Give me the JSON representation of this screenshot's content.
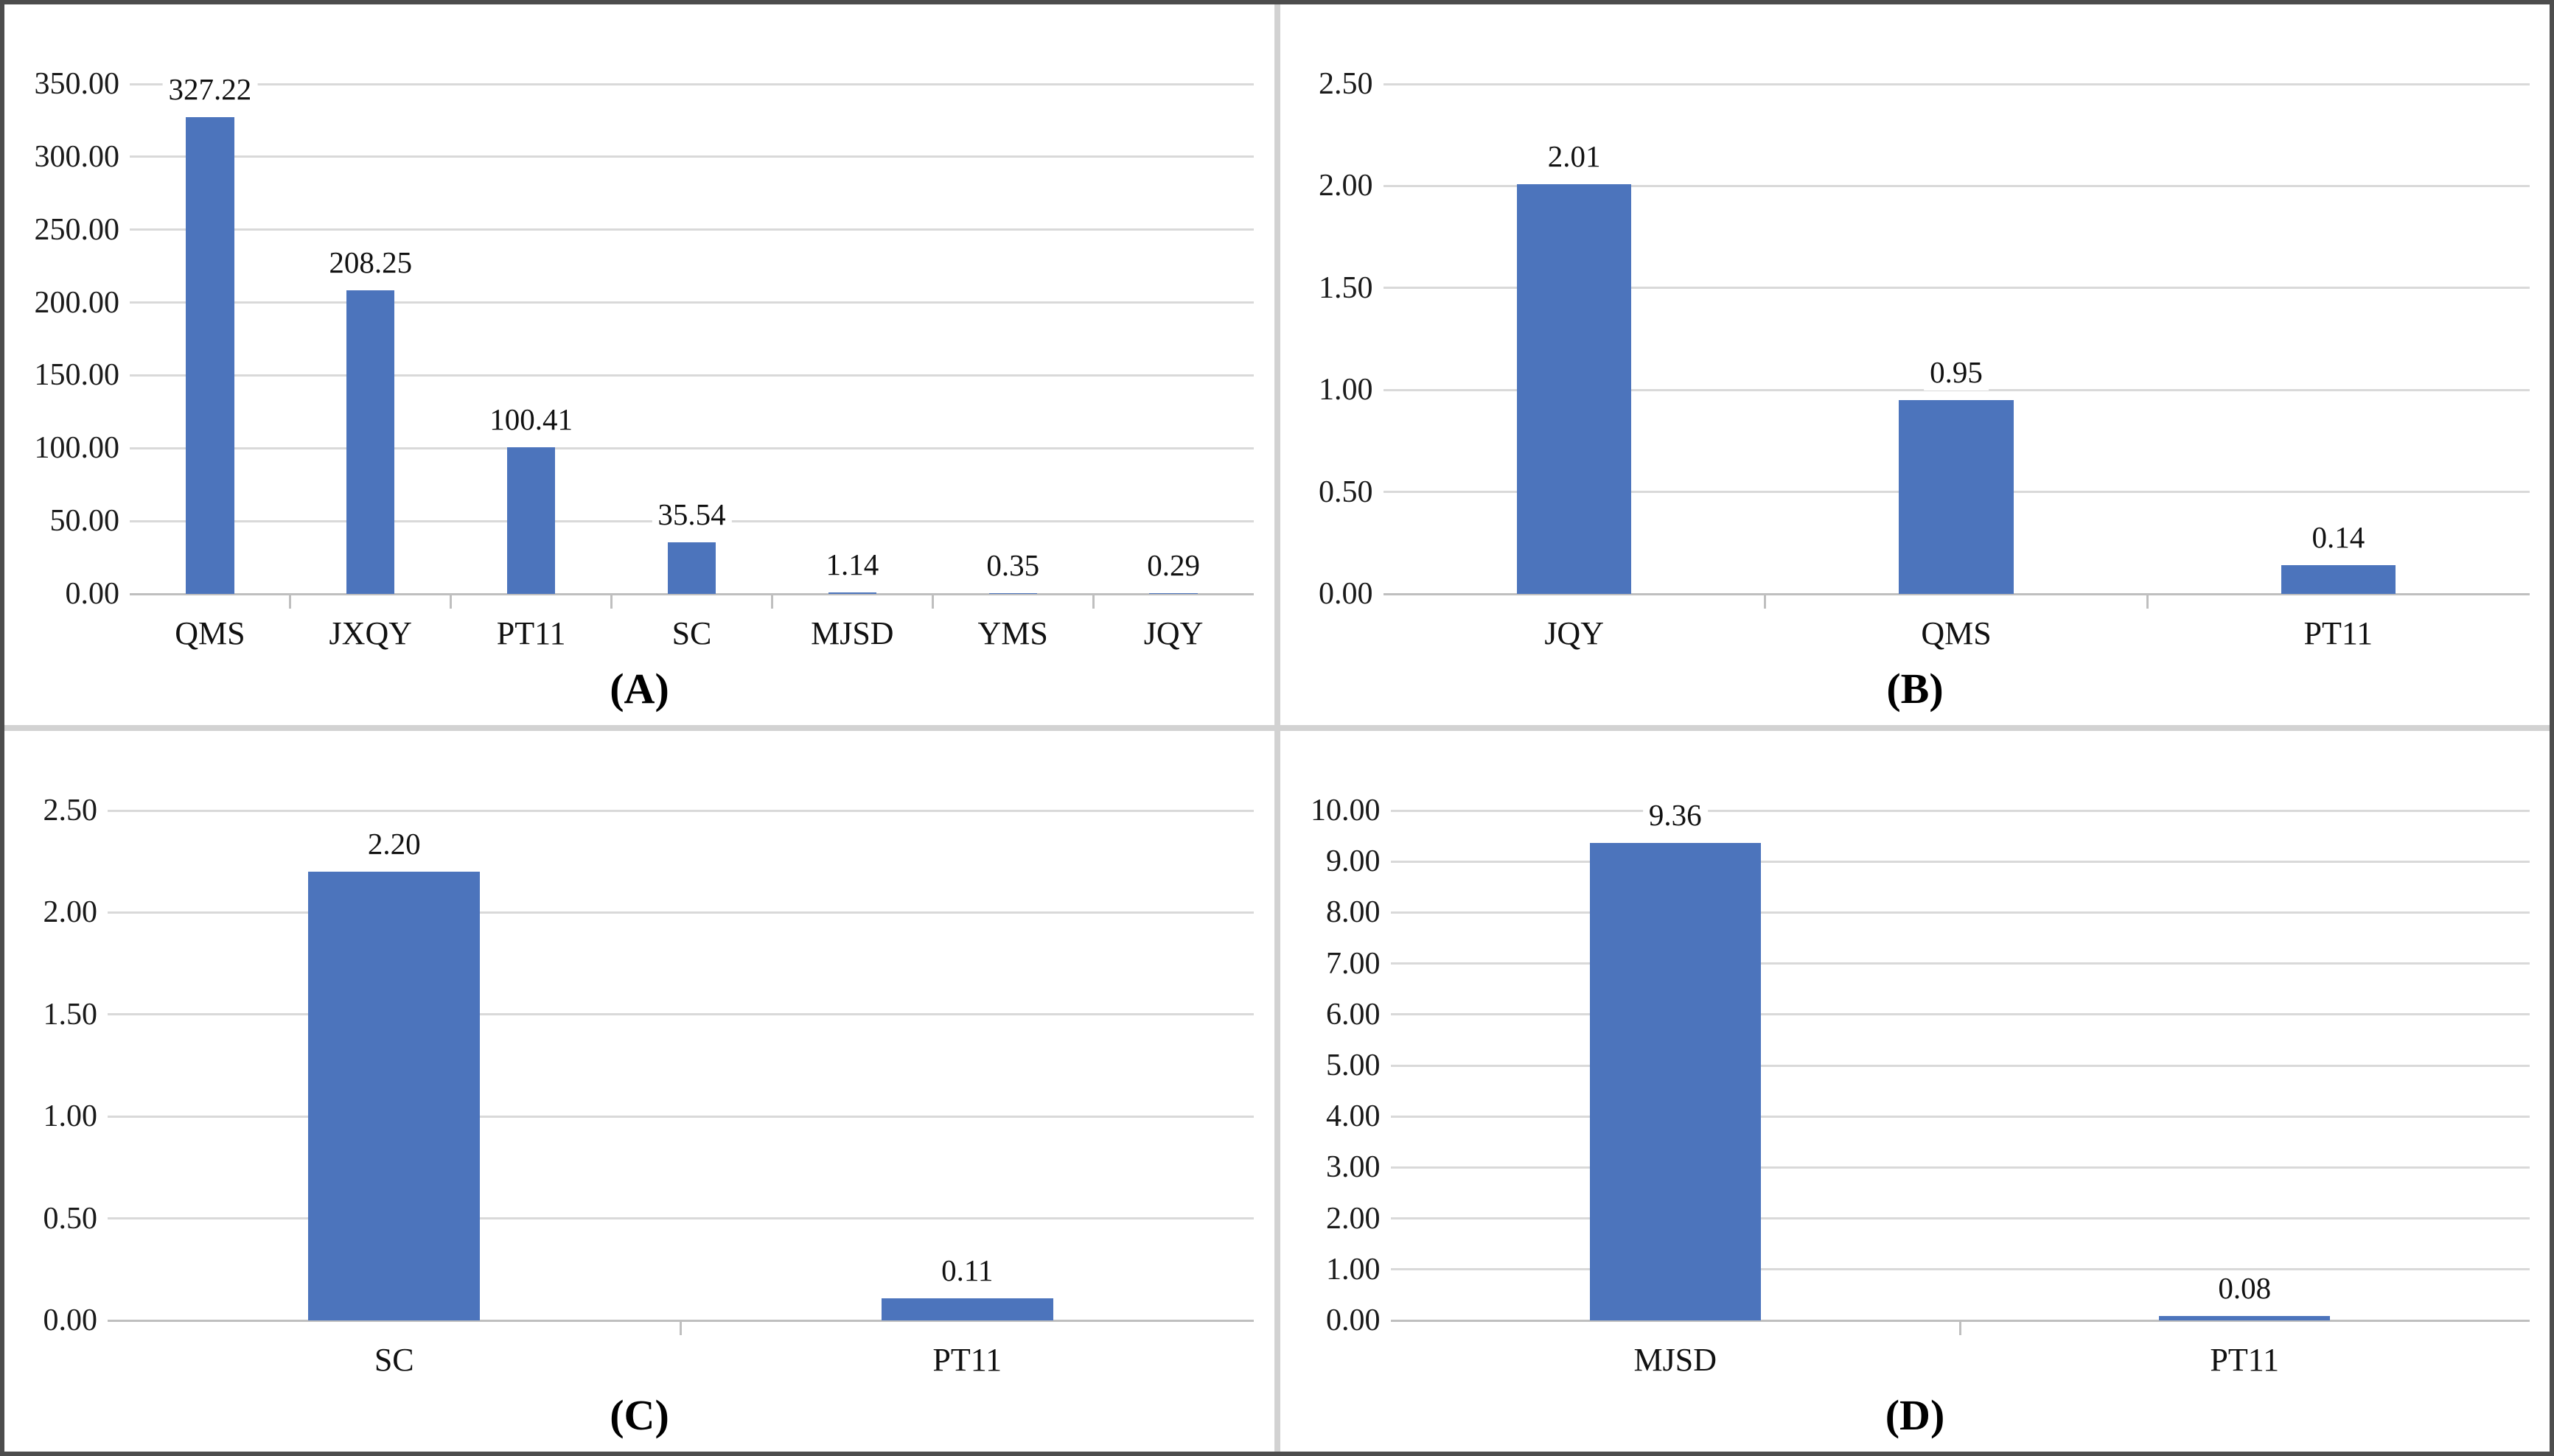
{
  "figure": {
    "bar_color": "#4c74bc",
    "gridline_color": "#d9d9d9",
    "axis_color": "#bfbfbf",
    "divider_color": "#d2d2d2",
    "border_color": "#4d4d4d"
  },
  "chart_data": [
    {
      "type": "bar",
      "panel_label": "(A)",
      "title": "",
      "xlabel": "",
      "ylabel": "",
      "categories": [
        "QMS",
        "JXQY",
        "PT11",
        "SC",
        "MJSD",
        "YMS",
        "JQY"
      ],
      "values": [
        327.22,
        208.25,
        100.41,
        35.54,
        1.14,
        0.35,
        0.29
      ],
      "data_labels": [
        "327.22",
        "208.25",
        "100.41",
        "35.54",
        "1.14",
        "0.35",
        "0.29"
      ],
      "ylim": [
        0,
        350
      ],
      "ytick_step": 50,
      "ytick_decimals": 2,
      "grid": true,
      "legend": false
    },
    {
      "type": "bar",
      "panel_label": "(B)",
      "title": "",
      "xlabel": "",
      "ylabel": "",
      "categories": [
        "JQY",
        "QMS",
        "PT11"
      ],
      "values": [
        2.01,
        0.95,
        0.14
      ],
      "data_labels": [
        "2.01",
        "0.95",
        "0.14"
      ],
      "ylim": [
        0,
        2.5
      ],
      "ytick_step": 0.5,
      "ytick_decimals": 2,
      "grid": true,
      "legend": false
    },
    {
      "type": "bar",
      "panel_label": "(C)",
      "title": "",
      "xlabel": "",
      "ylabel": "",
      "categories": [
        "SC",
        "PT11"
      ],
      "values": [
        2.2,
        0.11
      ],
      "data_labels": [
        "2.20",
        "0.11"
      ],
      "ylim": [
        0,
        2.5
      ],
      "ytick_step": 0.5,
      "ytick_decimals": 2,
      "grid": true,
      "legend": false
    },
    {
      "type": "bar",
      "panel_label": "(D)",
      "title": "",
      "xlabel": "",
      "ylabel": "",
      "categories": [
        "MJSD",
        "PT11"
      ],
      "values": [
        9.36,
        0.08
      ],
      "data_labels": [
        "9.36",
        "0.08"
      ],
      "ylim": [
        0,
        10
      ],
      "ytick_step": 1,
      "ytick_decimals": 2,
      "grid": true,
      "legend": false
    }
  ]
}
